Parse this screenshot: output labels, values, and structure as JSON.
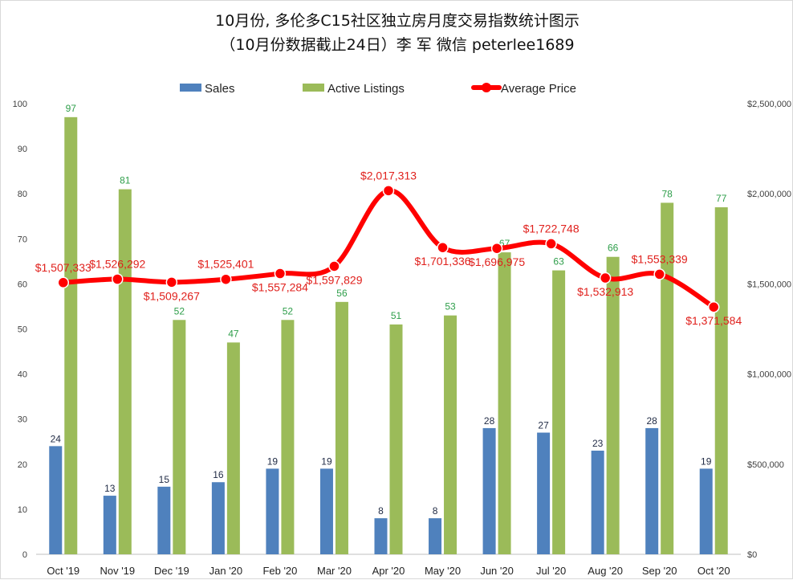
{
  "title_line1": "10月份, 多伦多C15社区独立房月度交易指数统计图示",
  "title_line2": "（10月份数据截止24日）李 军  微信  peterlee1689",
  "colors": {
    "sales": "#4f81bd",
    "active": "#9bbb59",
    "price": "#ff0000",
    "active_label": "#2e9e4a",
    "price_label": "#e0201c"
  },
  "chart_data": {
    "type": "bar",
    "categories": [
      "Oct '19",
      "Nov '19",
      "Dec '19",
      "Jan '20",
      "Feb '20",
      "Mar '20",
      "Apr '20",
      "May '20",
      "Jun '20",
      "Jul '20",
      "Aug '20",
      "Sep '20",
      "Oct '20"
    ],
    "series": [
      {
        "name": "Sales",
        "type": "bar",
        "axis": "left",
        "values": [
          24,
          13,
          15,
          16,
          19,
          19,
          8,
          8,
          28,
          27,
          23,
          28,
          19
        ]
      },
      {
        "name": "Active Listings",
        "type": "bar",
        "axis": "left",
        "values": [
          97,
          81,
          52,
          47,
          52,
          56,
          51,
          53,
          67,
          63,
          66,
          78,
          77
        ]
      },
      {
        "name": "Average Price",
        "type": "line",
        "axis": "right",
        "values": [
          1507333,
          1526292,
          1509267,
          1525401,
          1557284,
          1597829,
          2017313,
          1701336,
          1696975,
          1722748,
          1532913,
          1553339,
          1371584
        ]
      }
    ],
    "price_labels": [
      "$1,507,333",
      "$1,526,292",
      "$1,509,267",
      "$1,525,401",
      "$1,557,284",
      "$1,597,829",
      "$2,017,313",
      "$1,701,336",
      "$1,696,975",
      "$1,722,748",
      "$1,532,913",
      "$1,553,339",
      "$1,371,584"
    ],
    "left_axis": {
      "min": 0,
      "max": 100,
      "ticks": [
        "0",
        "10",
        "20",
        "30",
        "40",
        "50",
        "60",
        "70",
        "80",
        "90",
        "100"
      ]
    },
    "right_axis": {
      "min": 0,
      "max": 2500000,
      "ticks": [
        "$0",
        "$500,000",
        "$1,000,000",
        "$1,500,000",
        "$2,000,000",
        "$2,500,000"
      ]
    },
    "legend": [
      "Sales",
      "Active Listings",
      "Average Price"
    ],
    "legend_position": "top-center"
  }
}
